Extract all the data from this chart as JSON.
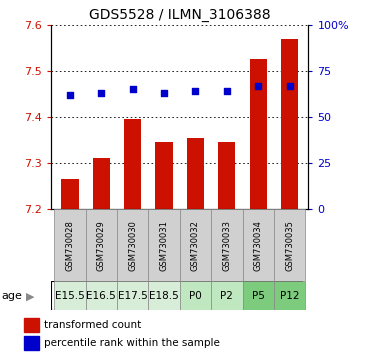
{
  "title": "GDS5528 / ILMN_3106388",
  "samples": [
    "GSM730028",
    "GSM730029",
    "GSM730030",
    "GSM730031",
    "GSM730032",
    "GSM730033",
    "GSM730034",
    "GSM730035"
  ],
  "ages": [
    "E15.5",
    "E16.5",
    "E17.5",
    "E18.5",
    "P0",
    "P2",
    "P5",
    "P12"
  ],
  "age_colors": [
    "#d8edd8",
    "#d8edd8",
    "#d8edd8",
    "#d8edd8",
    "#c0e8c0",
    "#c0e8c0",
    "#7dcc7d",
    "#7dcc7d"
  ],
  "bar_values": [
    7.265,
    7.31,
    7.395,
    7.345,
    7.355,
    7.345,
    7.525,
    7.57
  ],
  "bar_bottom": 7.2,
  "percentile_values": [
    62,
    63,
    65,
    63,
    64,
    64,
    67,
    67
  ],
  "ylim_left": [
    7.2,
    7.6
  ],
  "ylim_right": [
    0,
    100
  ],
  "yticks_left": [
    7.2,
    7.3,
    7.4,
    7.5,
    7.6
  ],
  "yticks_right": [
    0,
    25,
    50,
    75,
    100
  ],
  "bar_color": "#cc1100",
  "dot_color": "#0000cc",
  "legend_bar_label": "transformed count",
  "legend_dot_label": "percentile rank within the sample",
  "age_label": "age",
  "title_fontsize": 10,
  "tick_fontsize": 8,
  "sample_fontsize": 6,
  "age_fontsize": 7.5,
  "legend_fontsize": 7.5,
  "bar_width": 0.55
}
